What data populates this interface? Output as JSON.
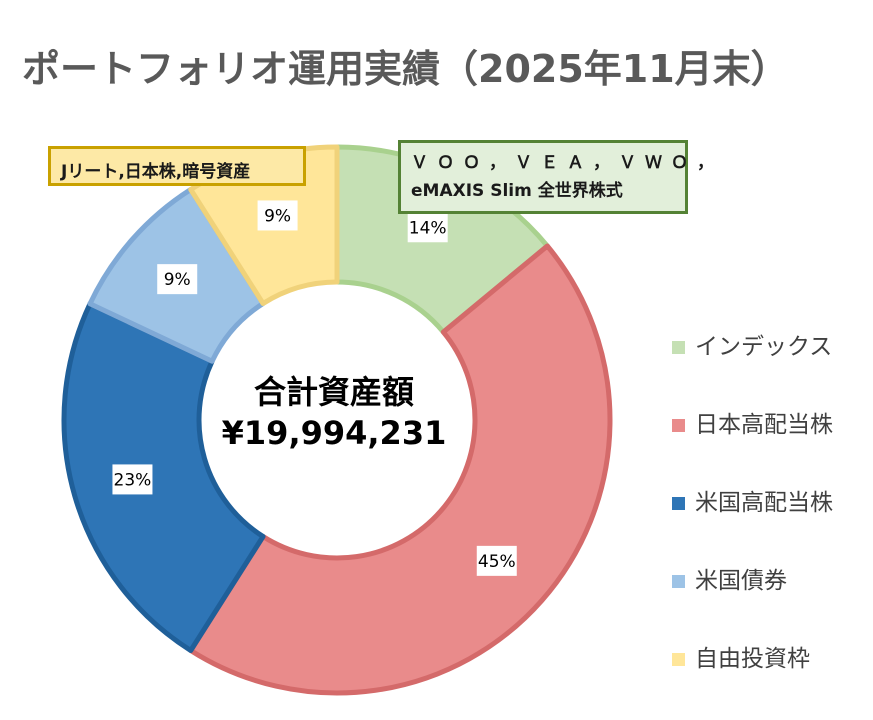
{
  "chart_data": {
    "type": "pie",
    "title": "ポートフォリオ運用実績（2025年11月末）",
    "categories": [
      "インデックス",
      "日本高配当株",
      "米国高配当株",
      "米国債券",
      "自由投資枠"
    ],
    "values": [
      14,
      45,
      23,
      9,
      9
    ],
    "value_labels": [
      "14%",
      "45%",
      "23%",
      "9%",
      "9%"
    ],
    "colors": [
      "#c5e0b4",
      "#e98b8b",
      "#2e75b6",
      "#9dc3e6",
      "#ffe699"
    ],
    "border_colors": [
      "#a9d18e",
      "#d46a6a",
      "#1f5f99",
      "#7fa9d6",
      "#f0d27a"
    ],
    "legend_position": "right",
    "center": {
      "line1": "合計資産額",
      "line2": "¥19,994,231"
    },
    "callouts": {
      "reit": "Jリート,日本株,暗号資産",
      "index_line1": "ＶＯＯ，ＶＥＡ，ＶＷＯ，",
      "index_line2": "eMAXIS Slim 全世界株式"
    }
  }
}
